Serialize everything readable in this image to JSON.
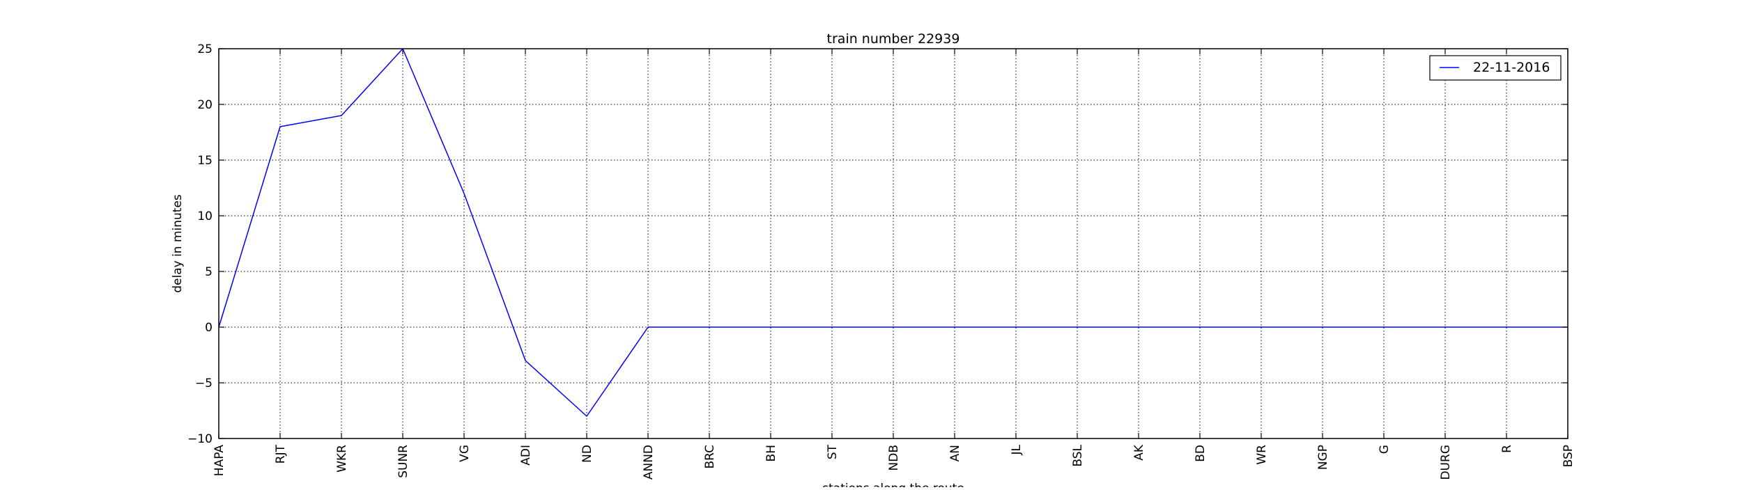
{
  "chart_data": {
    "type": "line",
    "title": "train number 22939",
    "xlabel": "stations along the route",
    "ylabel": "delay in minutes",
    "categories": [
      "HAPA",
      "RJT",
      "WKR",
      "SUNR",
      "VG",
      "ADI",
      "ND",
      "ANND",
      "BRC",
      "BH",
      "ST",
      "NDB",
      "AN",
      "JL",
      "BSL",
      "AK",
      "BD",
      "WR",
      "NGP",
      "G",
      "DURG",
      "R",
      "BSP"
    ],
    "series": [
      {
        "name": "22-11-2016",
        "color": "#0000ff",
        "values": [
          0,
          18,
          19,
          25,
          12,
          -3,
          -8,
          0,
          0,
          0,
          0,
          0,
          0,
          0,
          0,
          0,
          0,
          0,
          0,
          0,
          0,
          0,
          0
        ]
      }
    ],
    "ylim": [
      -10,
      25
    ],
    "yticks": [
      -10,
      -5,
      0,
      5,
      10,
      15,
      20,
      25
    ],
    "ytick_labels": [
      "−10",
      "−5",
      "0",
      "5",
      "10",
      "15",
      "20",
      "25"
    ],
    "grid": true,
    "legend_position": "top-right"
  }
}
